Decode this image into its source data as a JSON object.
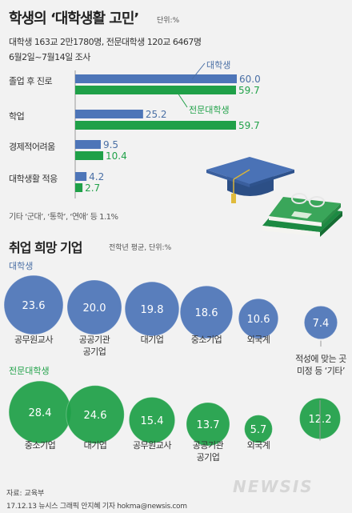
{
  "header": {
    "title": "학생의 ‘대학생활 고민’",
    "unit": "단위:%",
    "subtitle_line1": "대학생 163교 2만1780명, 전문대학생 120교 6467명",
    "subtitle_line2": "6월2일~7월14일 조사"
  },
  "legend": {
    "univ": "대학생",
    "college": "전문대학생"
  },
  "note": "기타 ‘군대’, ‘통학’, ‘연애’ 등 1.1%",
  "section2": {
    "title": "취업 희망 기업",
    "unit": "전학년 평균, 단위:%",
    "group_univ": "대학생",
    "group_college": "전문대학생"
  },
  "footer": {
    "source": "자료: 교육부",
    "credit": "17.12.13 뉴시스 그래픽 안지혜 기자 hokma@newsis.com",
    "logo": "NEWSIS"
  },
  "colors": {
    "univ": "#4a6fa5",
    "college": "#22a24a",
    "univ_bar": "#4d75b8",
    "college_bar": "#1fa048"
  },
  "chart_data": [
    {
      "type": "bar",
      "orientation": "horizontal",
      "categories": [
        "졸업 후 진로",
        "학업",
        "경제적어려움",
        "대학생활 적응"
      ],
      "series": [
        {
          "name": "대학생",
          "values": [
            60.0,
            25.2,
            9.5,
            4.2
          ],
          "labels": [
            "60.0",
            "25.2",
            "9.5",
            "4.2"
          ]
        },
        {
          "name": "전문대학생",
          "values": [
            59.7,
            59.7,
            10.4,
            2.7
          ],
          "labels": [
            "59.7",
            "59.7",
            "10.4",
            "2.7"
          ]
        }
      ],
      "xlim": [
        0,
        60
      ]
    },
    {
      "type": "bubble",
      "group": "대학생",
      "categories": [
        "공무원교사",
        "공공기관 공기업",
        "대기업",
        "중소기업",
        "외국계",
        "적성에 맞는 곳 미정 등 ‘기타’"
      ],
      "values": [
        23.6,
        20.0,
        19.8,
        18.6,
        10.6,
        7.4
      ],
      "labels": [
        "23.6",
        "20.0",
        "19.8",
        "18.6",
        "10.6",
        "7.4"
      ]
    },
    {
      "type": "bubble",
      "group": "전문대학생",
      "categories": [
        "중소기업",
        "대기업",
        "공무원교사",
        "공공기관 공기업",
        "외국계",
        "적성에 맞는 곳 미정 등 ‘기타’"
      ],
      "values": [
        28.4,
        24.6,
        15.4,
        13.7,
        5.7,
        12.2
      ],
      "labels": [
        "28.4",
        "24.6",
        "15.4",
        "13.7",
        "5.7",
        "12.2"
      ]
    }
  ]
}
